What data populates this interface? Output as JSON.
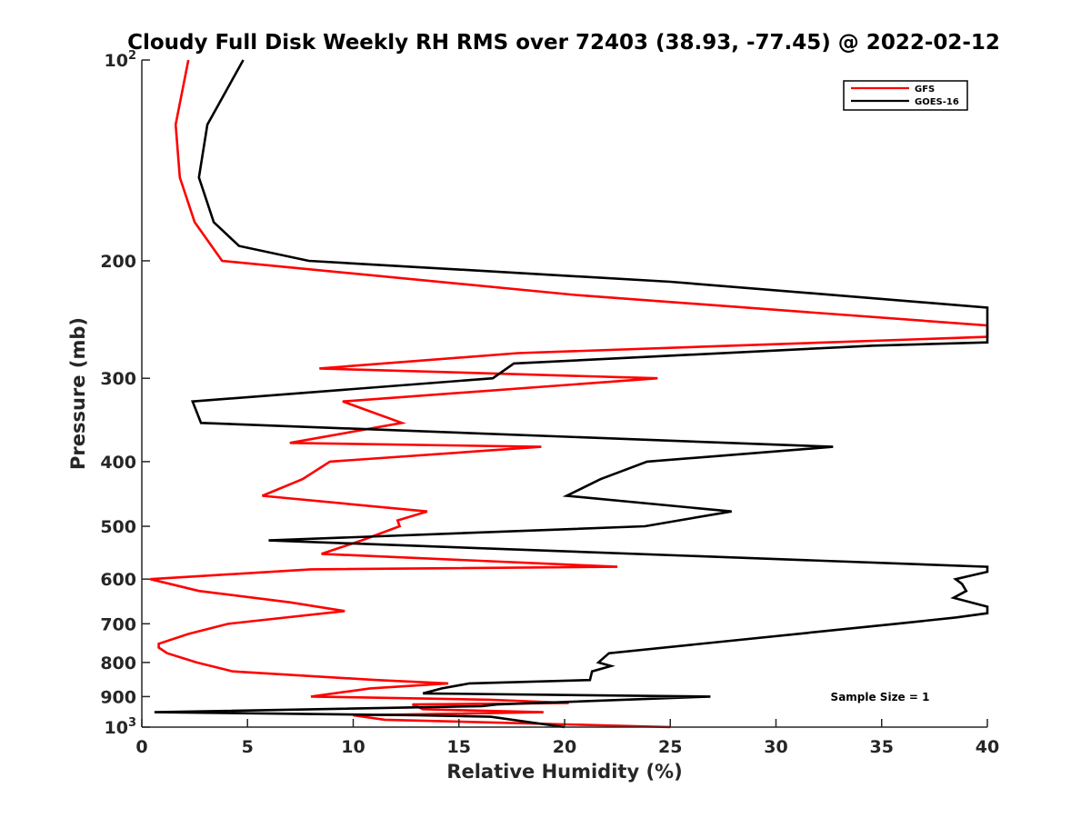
{
  "chart_data": {
    "type": "line",
    "title": "Cloudy Full Disk Weekly RH RMS over 72403 (38.93, -77.45) @ 2022-02-12",
    "xlabel": "Relative Humidity (%)",
    "ylabel": "Pressure (mb)",
    "xlim": [
      0,
      40
    ],
    "ylim": [
      100,
      1000
    ],
    "yscale": "log",
    "y_reversed": true,
    "grid": false,
    "legend_position": "top-right",
    "x_ticks": [
      0,
      5,
      10,
      15,
      20,
      25,
      30,
      35,
      40
    ],
    "y_ticks": [
      {
        "value": 100,
        "base": "10",
        "exp": "2"
      },
      {
        "value": 200,
        "label": "200"
      },
      {
        "value": 300,
        "label": "300"
      },
      {
        "value": 400,
        "label": "400"
      },
      {
        "value": 500,
        "label": "500"
      },
      {
        "value": 600,
        "label": "600"
      },
      {
        "value": 700,
        "label": "700"
      },
      {
        "value": 800,
        "label": "800"
      },
      {
        "value": 900,
        "label": "900"
      },
      {
        "value": 1000,
        "base": "10",
        "exp": "3"
      }
    ],
    "annotation": "Sample Size = 1",
    "series": [
      {
        "name": "GFS",
        "color": "#ff0000",
        "points": [
          [
            2.2,
            100
          ],
          [
            1.6,
            125
          ],
          [
            1.8,
            150
          ],
          [
            2.5,
            175
          ],
          [
            3.8,
            200
          ],
          [
            20.5,
            225
          ],
          [
            40,
            250
          ],
          [
            40,
            260
          ],
          [
            17.8,
            275
          ],
          [
            8.4,
            290
          ],
          [
            24.4,
            300
          ],
          [
            9.5,
            325
          ],
          [
            12.3,
            350
          ],
          [
            7.0,
            375
          ],
          [
            18.9,
            380
          ],
          [
            8.9,
            400
          ],
          [
            7.6,
            425
          ],
          [
            5.7,
            450
          ],
          [
            13.5,
            475
          ],
          [
            12.1,
            490
          ],
          [
            12.2,
            500
          ],
          [
            10.4,
            525
          ],
          [
            8.5,
            550
          ],
          [
            22.5,
            575
          ],
          [
            8.0,
            580
          ],
          [
            0.4,
            600
          ],
          [
            2.7,
            625
          ],
          [
            7.0,
            650
          ],
          [
            9.6,
            670
          ],
          [
            4.1,
            700
          ],
          [
            2.2,
            725
          ],
          [
            0.8,
            750
          ],
          [
            0.8,
            760
          ],
          [
            1.2,
            775
          ],
          [
            2.6,
            800
          ],
          [
            4.3,
            825
          ],
          [
            11.1,
            850
          ],
          [
            14.5,
            860
          ],
          [
            10.8,
            875
          ],
          [
            8.0,
            900
          ],
          [
            16.5,
            910
          ],
          [
            20.2,
            920
          ],
          [
            12.8,
            925
          ],
          [
            13.3,
            940
          ],
          [
            19.0,
            950
          ],
          [
            10.0,
            960
          ],
          [
            11.5,
            975
          ],
          [
            25.0,
            1000
          ]
        ]
      },
      {
        "name": "GOES-16",
        "color": "#000000",
        "points": [
          [
            4.8,
            100
          ],
          [
            3.1,
            125
          ],
          [
            2.7,
            150
          ],
          [
            3.4,
            175
          ],
          [
            4.6,
            190
          ],
          [
            7.9,
            200
          ],
          [
            25.0,
            215
          ],
          [
            40,
            235
          ],
          [
            40,
            265
          ],
          [
            34.6,
            268
          ],
          [
            17.6,
            285
          ],
          [
            16.6,
            300
          ],
          [
            2.4,
            325
          ],
          [
            2.8,
            350
          ],
          [
            32.7,
            380
          ],
          [
            23.9,
            400
          ],
          [
            21.7,
            425
          ],
          [
            20.1,
            450
          ],
          [
            27.9,
            475
          ],
          [
            25.4,
            490
          ],
          [
            23.8,
            500
          ],
          [
            6.0,
            525
          ],
          [
            40,
            575
          ],
          [
            40,
            585
          ],
          [
            38.5,
            600
          ],
          [
            38.8,
            610
          ],
          [
            39.0,
            625
          ],
          [
            38.4,
            640
          ],
          [
            40,
            660
          ],
          [
            40,
            675
          ],
          [
            38.5,
            685
          ],
          [
            35.7,
            700
          ],
          [
            22.1,
            775
          ],
          [
            21.6,
            800
          ],
          [
            22.2,
            810
          ],
          [
            21.3,
            825
          ],
          [
            21.2,
            850
          ],
          [
            15.5,
            860
          ],
          [
            14.2,
            875
          ],
          [
            13.3,
            890
          ],
          [
            26.9,
            900
          ],
          [
            16.8,
            925
          ],
          [
            16.1,
            930
          ],
          [
            0.6,
            950
          ],
          [
            13.0,
            960
          ],
          [
            16.5,
            965
          ],
          [
            20.0,
            1000
          ]
        ]
      }
    ]
  }
}
